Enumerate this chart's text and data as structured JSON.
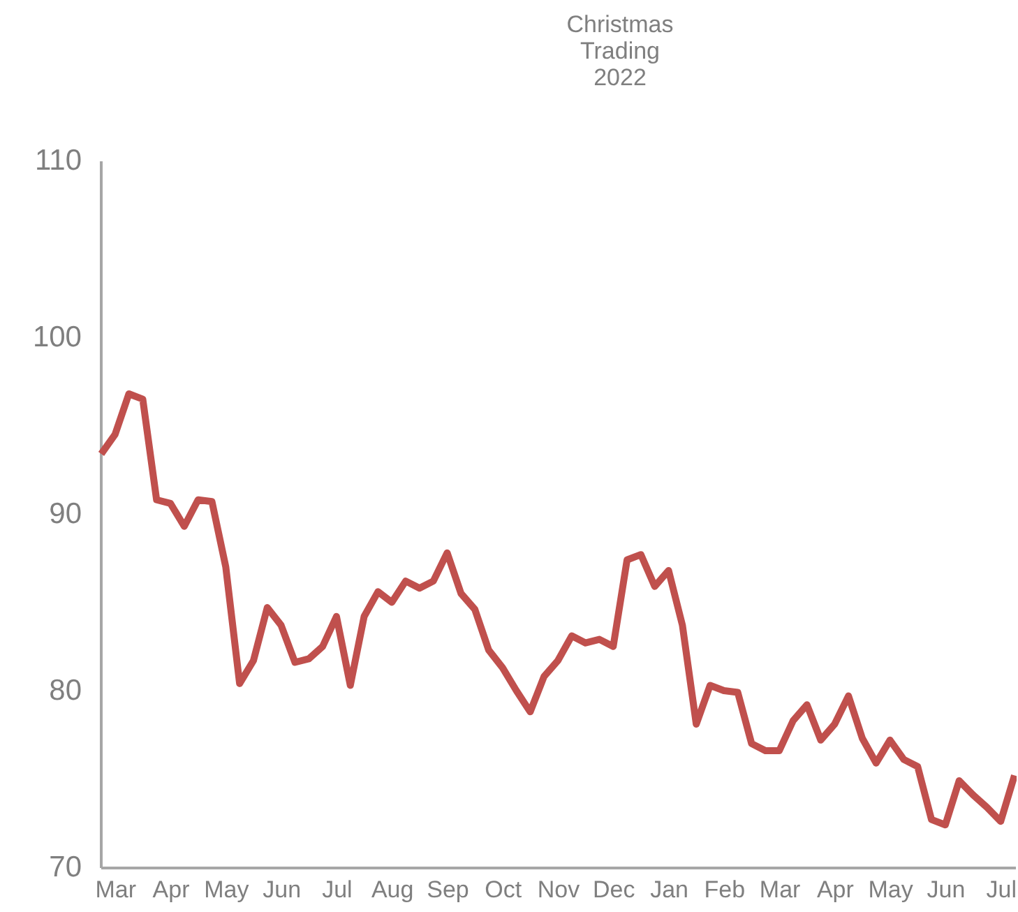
{
  "chart_data": {
    "type": "line",
    "categories": [
      null,
      "Mar",
      null,
      null,
      null,
      "Apr",
      null,
      null,
      null,
      "May",
      null,
      null,
      null,
      "Jun",
      null,
      null,
      null,
      "Jul",
      null,
      null,
      null,
      "Aug",
      null,
      null,
      null,
      "Sep",
      null,
      null,
      null,
      "Oct",
      null,
      null,
      null,
      "Nov",
      null,
      null,
      null,
      "Dec",
      null,
      null,
      null,
      "Jan",
      null,
      null,
      null,
      "Feb",
      null,
      null,
      null,
      "Mar",
      null,
      null,
      null,
      "Apr",
      null,
      null,
      null,
      "May",
      null,
      null,
      null,
      "Jun",
      null,
      null,
      null,
      "Jul",
      null
    ],
    "series": [
      {
        "color": "#c0504d",
        "values": [
          93.4,
          94.5,
          96.8,
          96.5,
          90.8,
          90.6,
          89.3,
          90.8,
          90.7,
          87.0,
          80.4,
          81.7,
          84.7,
          83.7,
          81.6,
          81.8,
          82.5,
          84.2,
          80.3,
          84.2,
          85.6,
          85.0,
          86.2,
          85.8,
          86.2,
          87.8,
          85.5,
          84.6,
          82.3,
          81.3,
          80.0,
          78.8,
          80.8,
          81.7,
          83.1,
          82.7,
          82.9,
          82.5,
          87.4,
          87.7,
          85.9,
          86.8,
          83.7,
          78.1,
          80.3,
          80.0,
          79.9,
          77.0,
          76.6,
          76.6,
          78.3,
          79.2,
          77.2,
          78.1,
          79.7,
          77.3,
          75.9,
          77.2,
          76.1,
          75.7,
          72.7,
          72.4,
          74.9,
          74.1,
          73.4,
          72.6,
          75.2
        ]
      }
    ],
    "ylim": [
      70,
      110
    ],
    "yticks": [
      70,
      80,
      90,
      100,
      110
    ],
    "grid": false,
    "legend": false,
    "marker": "none",
    "line_style": "solid",
    "annotations": [
      "Christmas\nTrading\n2022"
    ]
  }
}
